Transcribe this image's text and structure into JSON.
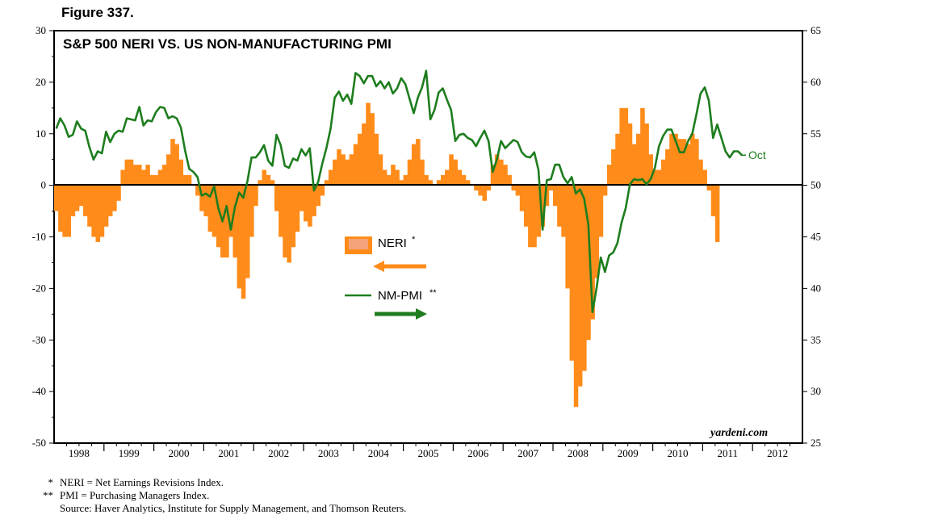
{
  "figure_label": "Figure 337.",
  "chart_data": {
    "type": "bar+line",
    "title": "S&P 500 NERI VS. US NON-MANUFACTURING PMI",
    "x_tick_labels": [
      "1998",
      "1999",
      "2000",
      "2001",
      "2002",
      "2003",
      "2004",
      "2005",
      "2006",
      "2007",
      "2008",
      "2009",
      "2010",
      "2011",
      "2012"
    ],
    "left_axis": {
      "ylim": [
        -50,
        30
      ],
      "ticks": [
        "30",
        "20",
        "10",
        "0",
        "-10",
        "-20",
        "-30",
        "-40",
        "-50"
      ]
    },
    "right_axis": {
      "ylim": [
        25,
        65
      ],
      "ticks": [
        "65",
        "60",
        "55",
        "50",
        "45",
        "40",
        "35",
        "30",
        "25"
      ]
    },
    "legend": [
      {
        "name": "NERI",
        "mark": "*",
        "color": "#FF8C1A",
        "axis": "left"
      },
      {
        "name": "NM-PMI",
        "mark": "**",
        "color": "#1E7D1E",
        "axis": "right"
      }
    ],
    "annotation_oct": "Oct",
    "watermark": "yardeni.com",
    "series": [
      {
        "name": "NERI",
        "type": "bar",
        "start": "1998-01",
        "values": [
          -5,
          -9,
          -10,
          -10,
          -6,
          -5,
          -4,
          -6,
          -8,
          -10,
          -11,
          -10,
          -8,
          -6,
          -5,
          -3,
          3,
          5,
          5,
          4,
          4,
          3,
          4,
          2,
          2,
          3,
          4,
          6,
          9,
          8,
          5,
          2,
          2,
          0,
          -2,
          -5,
          -6,
          -9,
          -10,
          -12,
          -14,
          -14,
          -10,
          -14,
          -20,
          -22,
          -18,
          -10,
          -4,
          1,
          3,
          2,
          1,
          -5,
          -10,
          -14,
          -15,
          -12,
          -9,
          -5,
          -7,
          -8,
          -6,
          -4,
          -2,
          1,
          3,
          5,
          7,
          6,
          5,
          6,
          8,
          10,
          12,
          16,
          14,
          10,
          6,
          3,
          2,
          4,
          3,
          1,
          2,
          5,
          8,
          9,
          5,
          2,
          1,
          0,
          1,
          2,
          3,
          6,
          5,
          3,
          2,
          1,
          0,
          -1,
          -2,
          -3,
          -1,
          4,
          6,
          5,
          4,
          2,
          -1,
          -2,
          -5,
          -8,
          -12,
          -12,
          -10,
          -8,
          -4,
          -1,
          -4,
          -8,
          -10,
          -20,
          -34,
          -43,
          -39,
          -36,
          -30,
          -26,
          -18,
          -10,
          -2,
          4,
          7,
          10,
          15,
          15,
          12,
          8,
          10,
          15,
          12,
          6,
          3,
          3,
          5,
          7,
          10,
          10,
          9,
          9,
          8,
          10,
          9,
          5,
          3,
          -1,
          -6,
          -11
        ]
      },
      {
        "name": "NM-PMI",
        "type": "line",
        "start": "1998-01",
        "values": [
          55.5,
          56.5,
          55.8,
          54.7,
          54.9,
          56.2,
          55.5,
          55.3,
          53.7,
          52.5,
          53.3,
          53.1,
          55.2,
          54.2,
          55,
          55.3,
          55.2,
          56.5,
          56.4,
          56.3,
          57.6,
          55.8,
          56.3,
          56.2,
          57.1,
          57.6,
          57.5,
          56.5,
          56.7,
          56.5,
          55.6,
          53.4,
          51.6,
          51.3,
          50.8,
          49,
          49.2,
          48.9,
          49.9,
          47.8,
          46.5,
          48,
          45.7,
          47.9,
          49.3,
          48.8,
          50.4,
          52.7,
          52.7,
          53.2,
          53.9,
          52.4,
          51.9,
          54.9,
          53.9,
          51.9,
          51.7,
          52.6,
          52.4,
          53.5,
          52.9,
          53.6,
          49.5,
          50.3,
          52.1,
          53.6,
          55.5,
          58.5,
          59.1,
          58.2,
          58.8,
          57.9,
          60.9,
          60.6,
          59.9,
          60.6,
          60.6,
          59.6,
          60.1,
          59.4,
          60,
          58.9,
          59.4,
          60.4,
          59.8,
          58.4,
          57,
          58.5,
          59.5,
          61.1,
          56.4,
          57.3,
          59,
          59.4,
          58.3,
          57.3,
          54.3,
          54.9,
          55,
          54.6,
          54.4,
          53.8,
          54.6,
          55.3,
          54.3,
          51.3,
          52.5,
          54.3,
          53.6,
          54,
          54.4,
          54.2,
          53.2,
          52.8,
          52.7,
          53.2,
          51.5,
          45.7,
          50.5,
          50.6,
          52,
          52,
          50.8,
          50.2,
          50.8,
          49.2,
          49.6,
          48.7,
          46.2,
          37.7,
          40.1,
          43,
          41.6,
          43.2,
          43.5,
          44.4,
          46.4,
          47.8,
          50.1,
          50.6,
          50.5,
          50.6,
          50.1,
          50.6,
          51.7,
          53.8,
          54.8,
          55.4,
          55.4,
          54.3,
          53.2,
          53.2,
          54.3,
          55,
          56.9,
          58.9,
          59.5,
          58.2,
          54.6,
          55.9,
          54.6,
          53.3,
          52.7,
          53.3,
          53.3,
          52.9
        ]
      }
    ]
  },
  "footnotes": [
    {
      "mark": "*",
      "text": "NERI = Net Earnings Revisions Index."
    },
    {
      "mark": "**",
      "text": "PMI = Purchasing Managers Index."
    },
    {
      "mark": "",
      "text": "Source: Haver Analytics, Institute for Supply Management, and Thomson Reuters."
    }
  ]
}
